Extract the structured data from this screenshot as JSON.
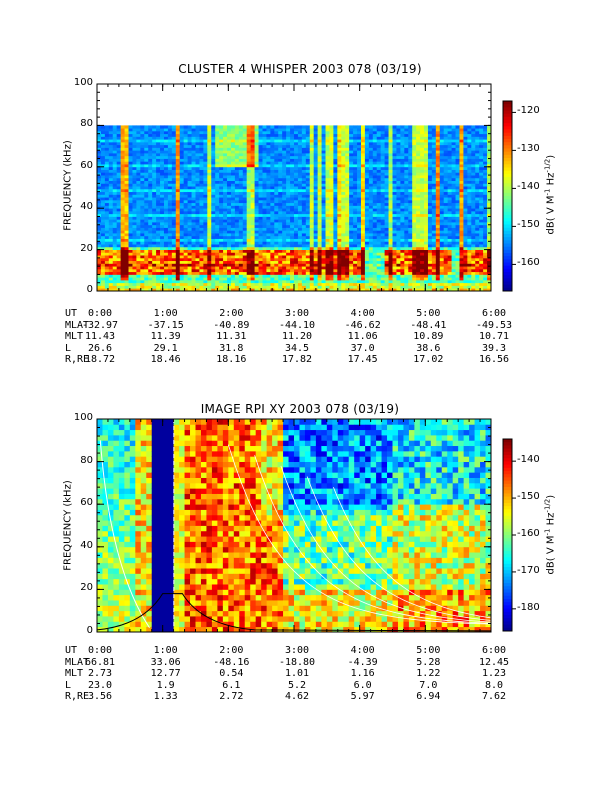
{
  "chart_data": [
    {
      "type": "heatmap",
      "title": "CLUSTER 4 WHISPER 2003 078 (03/19)",
      "ylabel": "FREQUENCY (kHz)",
      "ylim": [
        0,
        100
      ],
      "y_ticks": [
        "0",
        "20",
        "40",
        "60",
        "80",
        "100"
      ],
      "x_ticks": [
        "0:00",
        "1:00",
        "2:00",
        "3:00",
        "4:00",
        "5:00",
        "6:00"
      ],
      "data_max_freq_khz": 80,
      "colorbar": {
        "label": "dB( V M-1 Hz-1/2)",
        "label_parts": [
          "dB( V M",
          "-1",
          " Hz",
          "-1/2",
          ")"
        ],
        "range": [
          -167,
          -117
        ],
        "ticks": [
          "-120",
          "-130",
          "-140",
          "-150",
          "-160"
        ]
      },
      "ephemeris": {
        "UT": [
          "0:00",
          "1:00",
          "2:00",
          "3:00",
          "4:00",
          "5:00",
          "6:00"
        ],
        "MLAT": [
          "-32.97",
          "-37.15",
          "-40.89",
          "-44.10",
          "-46.62",
          "-48.41",
          "-49.53"
        ],
        "MLT": [
          "11.43",
          "11.39",
          "11.31",
          "11.20",
          "11.06",
          "10.89",
          "10.71"
        ],
        "L": [
          "26.6",
          "29.1",
          "31.8",
          "34.5",
          "37.0",
          "38.6",
          "39.3"
        ],
        "R,RE": [
          "18.72",
          "18.46",
          "18.16",
          "17.82",
          "17.45",
          "17.02",
          "16.56"
        ]
      }
    },
    {
      "type": "heatmap",
      "title": "IMAGE RPI XY 2003 078 (03/19)",
      "ylabel": "FREQUENCY (kHz)",
      "ylim": [
        0,
        100
      ],
      "y_ticks": [
        "0",
        "20",
        "40",
        "60",
        "80",
        "100"
      ],
      "x_ticks": [
        "0:00",
        "1:00",
        "2:00",
        "3:00",
        "4:00",
        "5:00",
        "6:00"
      ],
      "colorbar": {
        "label": "dB( V M-1 Hz-1/2)",
        "label_parts": [
          "dB( V M",
          "-1",
          " Hz",
          "-1/2",
          ")"
        ],
        "range": [
          -186,
          -134
        ],
        "ticks": [
          "-140",
          "-150",
          "-160",
          "-170",
          "-180"
        ]
      },
      "ephemeris": {
        "UT": [
          "0:00",
          "1:00",
          "2:00",
          "3:00",
          "4:00",
          "5:00",
          "6:00"
        ],
        "MLAT": [
          "66.81",
          "33.06",
          "-48.16",
          "-18.80",
          "-4.39",
          "5.28",
          "12.45"
        ],
        "MLT": [
          "2.73",
          "12.77",
          "0.54",
          "1.01",
          "1.16",
          "1.22",
          "1.23"
        ],
        "L": [
          "23.0",
          "1.9",
          "6.1",
          "5.2",
          "6.0",
          "7.0",
          "8.0"
        ],
        "R,RE": [
          "3.56",
          "1.33",
          "2.72",
          "4.62",
          "5.97",
          "6.94",
          "7.62"
        ]
      }
    }
  ]
}
